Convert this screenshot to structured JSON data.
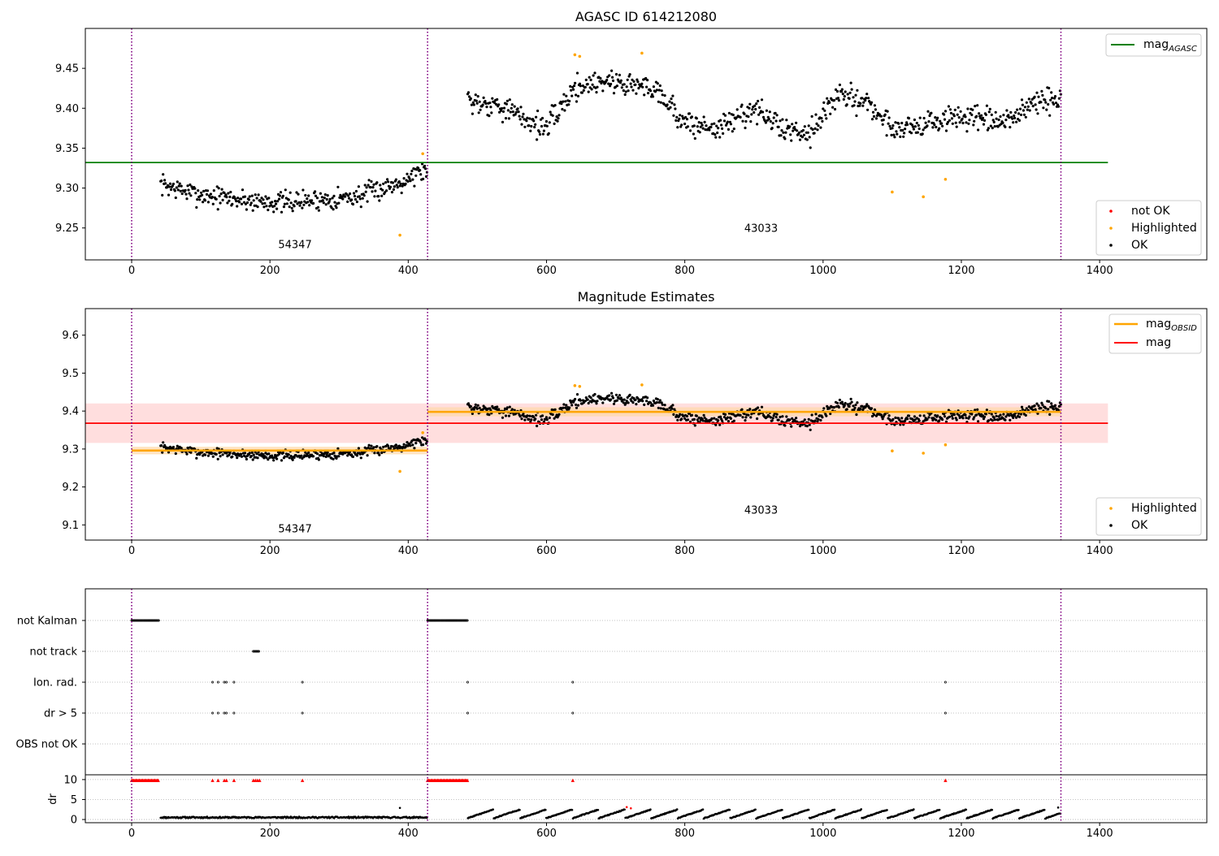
{
  "colors": {
    "ok": "#000000",
    "not_ok": "#ff0000",
    "highlighted": "#ffa500",
    "mag_agasc": "#008000",
    "mag_obsid": "#ffa500",
    "mag": "#ff0000",
    "obsid_boundary": "#800080",
    "mag_band": "#ffb6b6",
    "obsid_band": "#ffd8a8"
  },
  "chart_data": [
    {
      "id": "agasc",
      "type": "scatter",
      "title": "AGASC ID 614212080",
      "xlim": [
        -67,
        1555
      ],
      "ylim": [
        9.21,
        9.5
      ],
      "xticks": [
        "0",
        "200",
        "400",
        "600",
        "800",
        "1000",
        "1200",
        "1400"
      ],
      "yticks": [
        "9.25",
        "9.30",
        "9.35",
        "9.40",
        "9.45"
      ],
      "obsid_boundaries": [
        0,
        428,
        1344
      ],
      "obsid_labels": [
        {
          "text": "54347",
          "x": 212,
          "y": 9.225
        },
        {
          "text": "43033",
          "x": 886,
          "y": 9.245
        }
      ],
      "mag_agasc": {
        "value": 9.332,
        "x": [
          -67,
          1412
        ]
      },
      "segments": [
        {
          "x": [
            42,
            428
          ],
          "knots": [
            [
              42,
              9.305
            ],
            [
              90,
              9.293
            ],
            [
              160,
              9.285
            ],
            [
              220,
              9.282
            ],
            [
              280,
              9.286
            ],
            [
              330,
              9.29
            ],
            [
              380,
              9.305
            ],
            [
              428,
              9.325
            ]
          ],
          "noise": 0.011
        },
        {
          "x": [
            486,
            1344
          ],
          "knots": [
            [
              486,
              9.41
            ],
            [
              530,
              9.405
            ],
            [
              560,
              9.39
            ],
            [
              600,
              9.375
            ],
            [
              640,
              9.425
            ],
            [
              680,
              9.435
            ],
            [
              720,
              9.43
            ],
            [
              760,
              9.425
            ],
            [
              800,
              9.38
            ],
            [
              850,
              9.375
            ],
            [
              900,
              9.4
            ],
            [
              940,
              9.375
            ],
            [
              980,
              9.37
            ],
            [
              1020,
              9.415
            ],
            [
              1060,
              9.41
            ],
            [
              1100,
              9.375
            ],
            [
              1150,
              9.38
            ],
            [
              1200,
              9.39
            ],
            [
              1260,
              9.38
            ],
            [
              1300,
              9.405
            ],
            [
              1344,
              9.41
            ]
          ],
          "noise": 0.013
        }
      ],
      "highlighted_points": [
        [
          388,
          9.241
        ],
        [
          421,
          9.343
        ],
        [
          641,
          9.467
        ],
        [
          648,
          9.465
        ],
        [
          738,
          9.469
        ],
        [
          1100,
          9.295
        ],
        [
          1145,
          9.289
        ],
        [
          1177,
          9.311
        ]
      ],
      "legend_top": [
        {
          "label": "mag",
          "sub": "AGASC",
          "color": "#008000"
        }
      ],
      "legend_bottom": [
        {
          "label": "not OK",
          "color": "#ff0000"
        },
        {
          "label": "Highlighted",
          "color": "#ffa500"
        },
        {
          "label": "OK",
          "color": "#000000"
        }
      ]
    },
    {
      "id": "estimates",
      "type": "scatter",
      "title": "Magnitude Estimates",
      "xlim": [
        -67,
        1555
      ],
      "ylim": [
        9.06,
        9.67
      ],
      "xticks": [
        "0",
        "200",
        "400",
        "600",
        "800",
        "1000",
        "1200",
        "1400"
      ],
      "yticks": [
        "9.1",
        "9.2",
        "9.3",
        "9.4",
        "9.5",
        "9.6"
      ],
      "obsid_boundaries": [
        0,
        428,
        1344
      ],
      "obsid_labels": [
        {
          "text": "54347",
          "x": 212,
          "y": 9.08
        },
        {
          "text": "43033",
          "x": 886,
          "y": 9.13
        }
      ],
      "mag": {
        "value": 9.368,
        "band": [
          9.316,
          9.42
        ],
        "x": [
          -67,
          1412
        ]
      },
      "mag_obsid": [
        {
          "x": [
            0,
            428
          ],
          "value": 9.296,
          "band": [
            9.286,
            9.306
          ]
        },
        {
          "x": [
            428,
            1344
          ],
          "value": 9.398,
          "band": [
            9.386,
            9.41
          ]
        }
      ],
      "legend_top": [
        {
          "label": "mag",
          "sub": "OBSID",
          "color": "#ffa500"
        },
        {
          "label": "mag",
          "sub": "",
          "color": "#ff0000"
        }
      ],
      "legend_bottom": [
        {
          "label": "Highlighted",
          "color": "#ffa500"
        },
        {
          "label": "OK",
          "color": "#000000"
        }
      ]
    },
    {
      "id": "flags",
      "type": "scatter",
      "xlim": [
        -67,
        1555
      ],
      "xticks": [
        "0",
        "200",
        "400",
        "600",
        "800",
        "1000",
        "1200",
        "1400"
      ],
      "categories": [
        "not Kalman",
        "not track",
        "Ion. rad.",
        "dr > 5",
        "OBS not OK"
      ],
      "flag_ranges": {
        "not Kalman": [
          [
            0,
            40
          ],
          [
            428,
            486
          ]
        ],
        "not track": [
          [
            176,
            185
          ]
        ],
        "Ion. rad.": [],
        "dr > 5": [],
        "OBS not OK": []
      },
      "flag_points": {
        "Ion. rad.": [
          117,
          125,
          134,
          137,
          148,
          247,
          486,
          638,
          1177
        ],
        "dr > 5": [
          117,
          125,
          134,
          137,
          148,
          247,
          486,
          638,
          1177
        ]
      },
      "dr": {
        "ylabel": "dr",
        "yticks": [
          "0",
          "5",
          "10"
        ],
        "ylim": [
          -0.8,
          11.2
        ],
        "saturated_value": 9.8,
        "saturated_ranges": [
          [
            0,
            40
          ],
          [
            428,
            486
          ]
        ],
        "saturated_points": [
          117,
          125,
          134,
          137,
          148,
          176,
          179,
          182,
          185,
          247,
          638,
          1177
        ],
        "outliers": [
          [
            388,
            2.9
          ],
          [
            716,
            3.1
          ],
          [
            722,
            2.8
          ],
          [
            1340,
            3.0
          ]
        ]
      }
    }
  ]
}
